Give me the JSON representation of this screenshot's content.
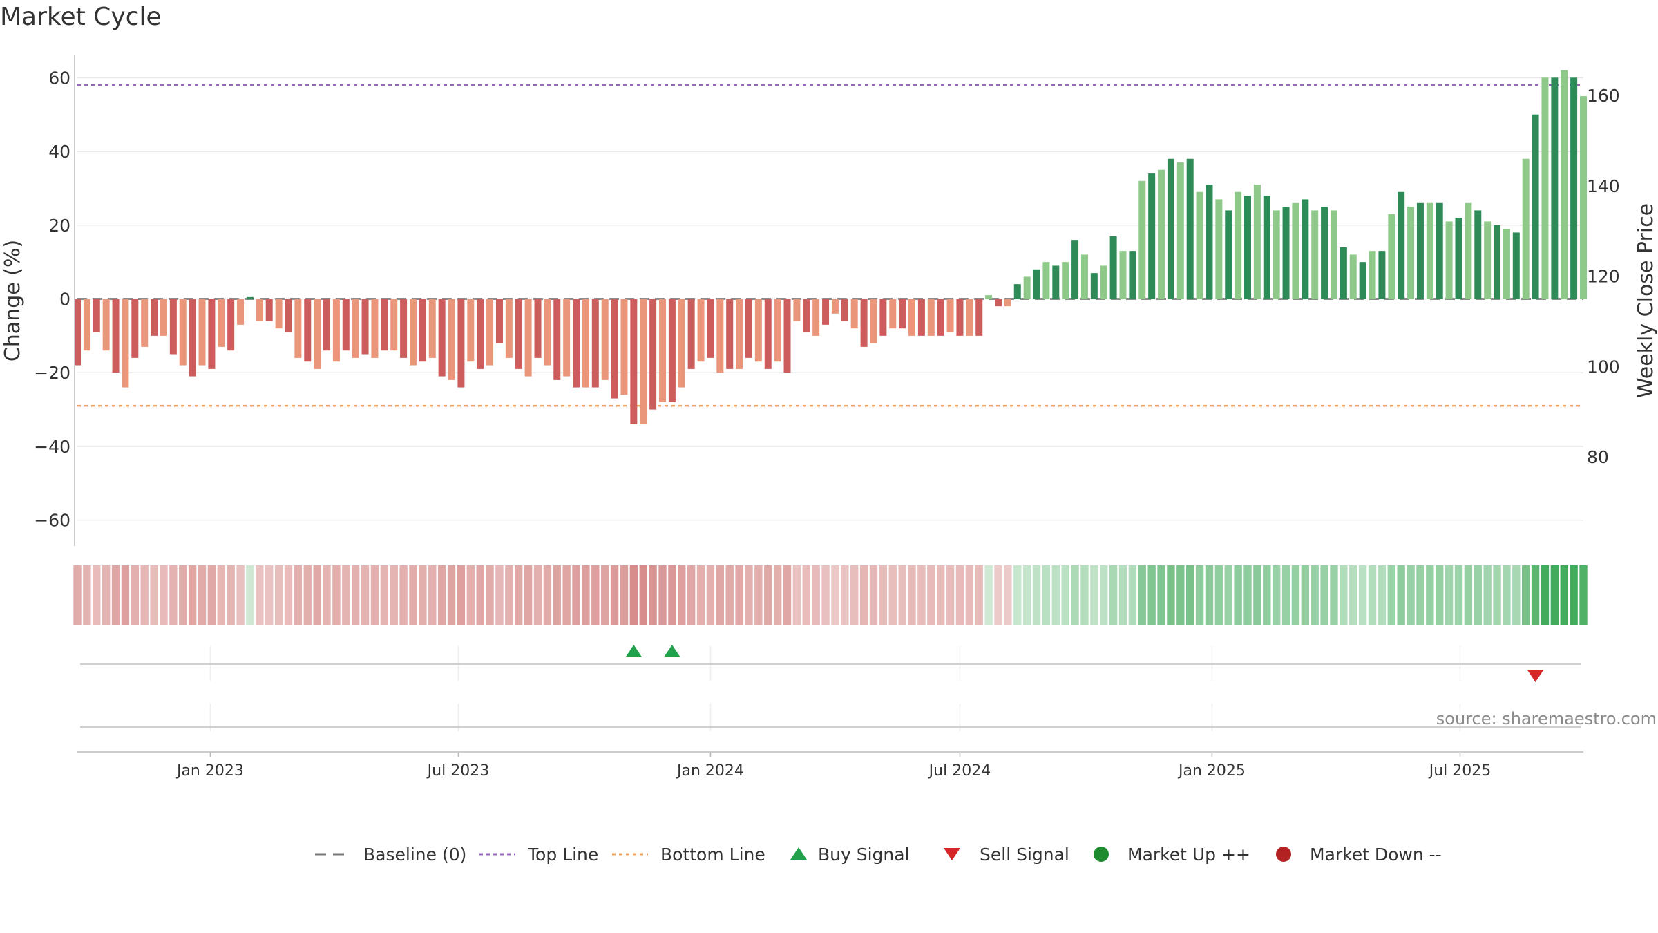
{
  "chart_data": {
    "type": "bar",
    "title": "Market Cycle",
    "ylabel_left": "Change (%)",
    "ylabel_right": "Weekly Close Price",
    "ylim_left": [
      -67,
      67
    ],
    "yticks_left": [
      60,
      40,
      20,
      0,
      -20,
      -40,
      -60
    ],
    "ytick_labels_left": [
      "60",
      "40",
      "20",
      "0",
      "−20",
      "−40",
      "−60"
    ],
    "yticks_right": [
      160,
      140,
      120,
      100,
      80
    ],
    "ytick_labels_right": [
      "160",
      "140",
      "120",
      "100",
      "80"
    ],
    "x_start": "2022-09-26",
    "x_end": "2025-09-29",
    "x_interval_days": 7,
    "xticks": [
      "2023-01-01",
      "2023-07-01",
      "2024-01-01",
      "2024-07-01",
      "2025-01-01",
      "2025-07-01"
    ],
    "xtick_labels": [
      "Jan 2023",
      "Jul 2023",
      "Jan 2024",
      "Jul 2024",
      "Jan 2025",
      "Jul 2025"
    ],
    "top_line": 58,
    "bottom_line": -29,
    "values": [
      -18,
      -14,
      -9,
      -14,
      -20,
      -24,
      -16,
      -13,
      -10,
      -10,
      -15,
      -18,
      -21,
      -18,
      -19,
      -13,
      -14,
      -7,
      0.5,
      -6,
      -6,
      -8,
      -9,
      -16,
      -17,
      -19,
      -14,
      -17,
      -14,
      -16,
      -15,
      -16,
      -14,
      -14,
      -16,
      -18,
      -17,
      -16,
      -21,
      -22,
      -24,
      -17,
      -19,
      -18,
      -12,
      -16,
      -19,
      -21,
      -16,
      -18,
      -22,
      -21,
      -24,
      -24,
      -24,
      -22,
      -27,
      -26,
      -34,
      -34,
      -30,
      -28,
      -28,
      -24,
      -19,
      -17,
      -16,
      -20,
      -19,
      -19,
      -16,
      -17,
      -19,
      -17,
      -20,
      -6,
      -9,
      -10,
      -7,
      -4,
      -6,
      -8,
      -13,
      -12,
      -10,
      -8,
      -8,
      -10,
      -10,
      -10,
      -10,
      -9,
      -10,
      -10,
      -10,
      1,
      -2,
      -2,
      4,
      6,
      8,
      10,
      9,
      10,
      16,
      12,
      7,
      9,
      17,
      13,
      13,
      32,
      34,
      35,
      38,
      37,
      38,
      29,
      31,
      27,
      24,
      29,
      28,
      31,
      28,
      24,
      25,
      26,
      27,
      24,
      25,
      24,
      14,
      12,
      10,
      13,
      13,
      23,
      29,
      25,
      26,
      26,
      26,
      21,
      22,
      26,
      24,
      21,
      20,
      19,
      18,
      38,
      50,
      60,
      60,
      62,
      60,
      55
    ],
    "signals": [
      {
        "date": "2023-11-06",
        "type": "buy"
      },
      {
        "date": "2023-12-04",
        "type": "buy"
      },
      {
        "date": "2025-08-25",
        "type": "sell"
      }
    ],
    "legend": [
      {
        "label": "Baseline (0)",
        "kind": "dash",
        "color": "#777777"
      },
      {
        "label": "Top Line",
        "kind": "dotted",
        "color": "#9467bd"
      },
      {
        "label": "Bottom Line",
        "kind": "dotted",
        "color": "#f0a35e"
      },
      {
        "label": "Buy Signal",
        "kind": "triangle-up",
        "color": "#22a04b"
      },
      {
        "label": "Sell Signal",
        "kind": "triangle-down",
        "color": "#d62728"
      },
      {
        "label": "Market Up ++",
        "kind": "circle",
        "color": "#1f8b2f"
      },
      {
        "label": "Market Down --",
        "kind": "circle",
        "color": "#b22222"
      }
    ],
    "colors": {
      "neg_dark": "#cd5c5c",
      "neg_light": "#e9967a",
      "pos_dark": "#2e8b57",
      "pos_light": "#8fc98a",
      "top_line": "#9467bd",
      "bottom_line": "#f0a35e"
    },
    "source": "source: sharemaestro.com"
  }
}
